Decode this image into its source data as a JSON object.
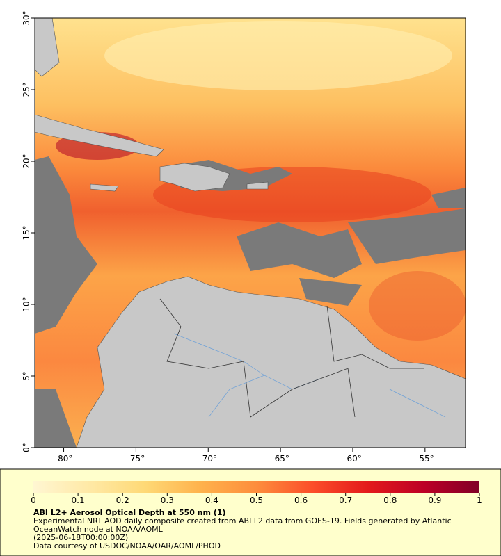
{
  "map": {
    "xlim": [
      -82,
      -52.2
    ],
    "ylim": [
      0,
      30
    ],
    "xticks": [
      {
        "value": -80,
        "label": "-80°"
      },
      {
        "value": -75,
        "label": "-75°"
      },
      {
        "value": -70,
        "label": "-70°"
      },
      {
        "value": -65,
        "label": "-65°"
      },
      {
        "value": -60,
        "label": "-60°"
      },
      {
        "value": -55,
        "label": "-55°"
      }
    ],
    "yticks": [
      {
        "value": 0,
        "label": "0°"
      },
      {
        "value": 5,
        "label": "5°"
      },
      {
        "value": 10,
        "label": "10°"
      },
      {
        "value": 15,
        "label": "15°"
      },
      {
        "value": 20,
        "label": "20°"
      },
      {
        "value": 25,
        "label": "25°"
      },
      {
        "value": 30,
        "label": "30°"
      }
    ]
  },
  "colorbar": {
    "lim": [
      0,
      1
    ],
    "ticks": [
      0,
      0.1,
      0.2,
      0.3,
      0.4,
      0.5,
      0.6,
      0.7,
      0.8,
      0.9,
      1
    ],
    "colors": [
      "#fff6d2",
      "#ffe9a6",
      "#fed976",
      "#feb24c",
      "#fd8d3c",
      "#fc4e2a",
      "#e31a1c",
      "#bd0026",
      "#800026"
    ]
  },
  "caption": {
    "title": "ABI L2+ Aerosol Optical Depth at 550 nm (1)",
    "description": "Experimental NRT AOD daily composite created from ABI L2 data from GOES-19. Fields generated by Atlantic OceanWatch node at NOAA/AOML",
    "date": "(2025-06-18T00:00:00Z)",
    "credit": "Data courtesy of USDOC/NOAA/OAR/AOML/PHOD"
  }
}
